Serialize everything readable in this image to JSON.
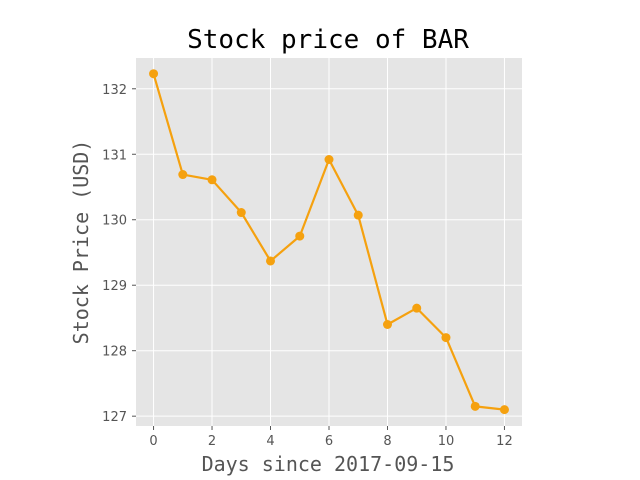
{
  "chart_data": {
    "type": "line",
    "title": "Stock price of BAR",
    "xlabel": "Days since 2017-09-15",
    "ylabel": "Stock Price (USD)",
    "x": [
      0,
      1,
      2,
      3,
      4,
      5,
      6,
      7,
      8,
      9,
      10,
      11,
      12
    ],
    "series": [
      {
        "values": [
          132.23,
          130.69,
          130.61,
          130.11,
          129.37,
          129.75,
          130.92,
          130.07,
          128.4,
          128.65,
          128.2,
          127.15,
          127.1
        ]
      }
    ],
    "xlim": [
      -0.6,
      12.6
    ],
    "ylim": [
      126.85,
      132.47
    ],
    "xticks": [
      "0",
      "2",
      "4",
      "6",
      "8",
      "10",
      "12"
    ],
    "yticks": [
      "127",
      "128",
      "129",
      "130",
      "131",
      "132"
    ],
    "grid": true,
    "line_color": "#f5a10f",
    "background_color": "#e5e5e5",
    "grid_color": "#ffffff"
  }
}
